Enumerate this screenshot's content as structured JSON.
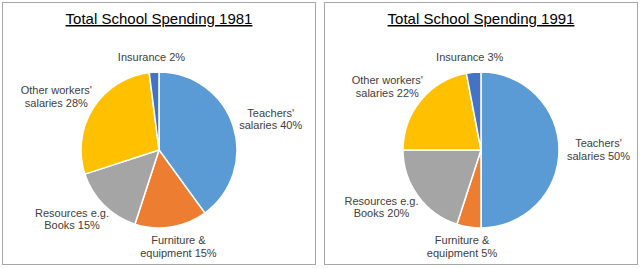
{
  "chart_data": [
    {
      "type": "pie",
      "title": "Total School Spending 1981",
      "categories": [
        "Teachers' salaries",
        "Furniture & equipment",
        "Resources e.g. Books",
        "Other workers' salaries",
        "Insurance"
      ],
      "values": [
        40,
        15,
        15,
        28,
        2
      ],
      "value_labels": [
        "40%",
        "15%",
        "15%",
        "28%",
        "2%"
      ],
      "colors": [
        "#5b9bd5",
        "#ed7d31",
        "#a5a5a5",
        "#ffc000",
        "#4472c4"
      ],
      "data_labels": true
    },
    {
      "type": "pie",
      "title": "Total School Spending 1991",
      "categories": [
        "Teachers' salaries",
        "Furniture & equipment",
        "Resources e.g. Books",
        "Other workers' salaries",
        "Insurance"
      ],
      "values": [
        50,
        5,
        20,
        22,
        3
      ],
      "value_labels": [
        "50%",
        "5%",
        "20%",
        "22%",
        "3%"
      ],
      "colors": [
        "#5b9bd5",
        "#ed7d31",
        "#a5a5a5",
        "#ffc000",
        "#4472c4"
      ],
      "data_labels": true
    }
  ]
}
